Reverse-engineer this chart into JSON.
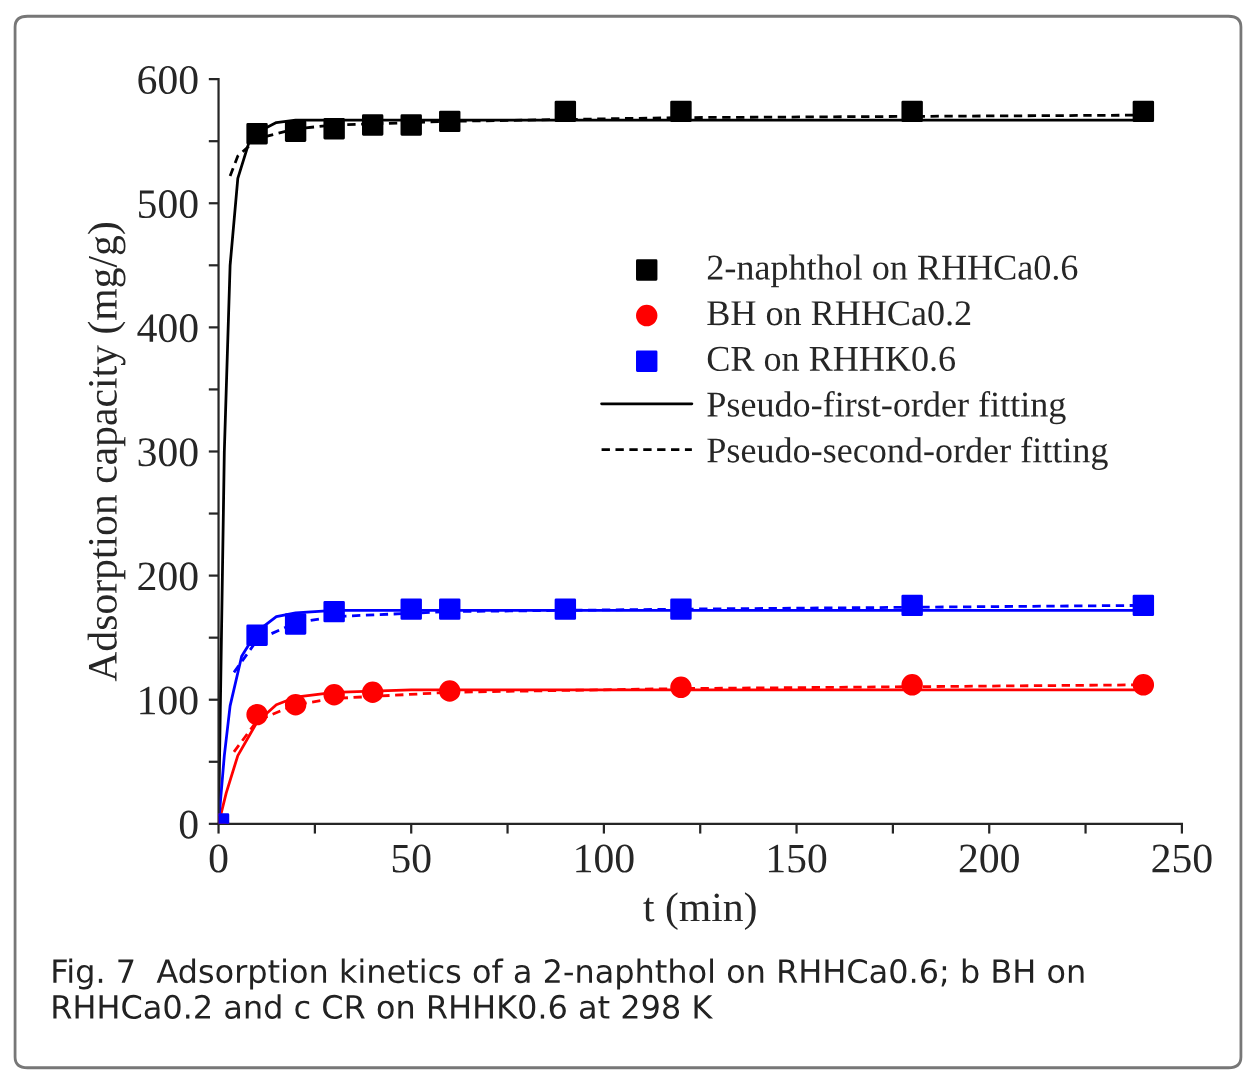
{
  "chart_data": {
    "type": "scatter",
    "xlabel": "t (min)",
    "ylabel": "Adsorption capacity (mg/g)",
    "xlim": [
      0,
      250
    ],
    "ylim": [
      0,
      600
    ],
    "xticks": [
      0,
      {
        "value": 25,
        "label": null
      },
      50,
      {
        "value": 75,
        "label": null
      },
      100,
      {
        "value": 125,
        "label": null
      },
      150,
      {
        "value": 175,
        "label": null
      },
      200,
      {
        "value": 225,
        "label": null
      },
      250
    ],
    "yticks": [
      0,
      {
        "value": 50,
        "label": null
      },
      100,
      {
        "value": 150,
        "label": null
      },
      200,
      {
        "value": 250,
        "label": null
      },
      300,
      {
        "value": 350,
        "label": null
      },
      400,
      {
        "value": 450,
        "label": null
      },
      500,
      {
        "value": 550,
        "label": null
      },
      600
    ],
    "grid": false,
    "legend": "right",
    "annotations": [
      "Fig. 7  Adsorption kinetics of a 2-naphthol on RHHCa0.6; b BH on RHHCa0.2 and c CR on RHHK0.6 at 298 K"
    ],
    "series": [
      {
        "name": "2-naphthol on RHHCa0.6",
        "marker": "square",
        "color": "#000000",
        "x": [
          10,
          20,
          30,
          40,
          50,
          60,
          90,
          120,
          180,
          240
        ],
        "values": [
          556,
          558,
          560,
          563,
          563,
          566,
          574,
          574,
          574,
          574
        ]
      },
      {
        "name": "BH on RHHCa0.2",
        "marker": "circle",
        "color": "#ff0000",
        "x": [
          0,
          10,
          20,
          30,
          40,
          60,
          120,
          180,
          240
        ],
        "values": [
          0,
          88,
          96,
          104,
          106,
          107,
          110,
          112,
          112
        ]
      },
      {
        "name": "CR on RHHK0.6",
        "marker": "square",
        "color": "#0000ff",
        "x": [
          0,
          10,
          20,
          30,
          50,
          60,
          90,
          120,
          180,
          240
        ],
        "values": [
          0,
          152,
          161,
          171,
          173,
          173,
          173,
          173,
          176,
          176
        ]
      },
      {
        "name": "Pseudo-first-order fitting",
        "type": "line",
        "line_style": "solid",
        "color": "#000000",
        "x": [
          0,
          1.5,
          3,
          5,
          8,
          10,
          15,
          20,
          30,
          60,
          240
        ],
        "values": [
          0,
          300,
          450,
          520,
          550,
          557,
          565,
          567,
          567,
          567,
          567
        ]
      },
      {
        "name": "Pseudo-second-order fitting",
        "type": "line",
        "line_style": "dashed",
        "color": "#000000",
        "x": [
          3,
          5,
          10,
          20,
          30,
          60,
          120,
          240
        ],
        "values": [
          522,
          538,
          552,
          560,
          563,
          566,
          569,
          571
        ]
      },
      {
        "type": "line",
        "line_style": "solid",
        "color": "#ff0000",
        "x": [
          0,
          2,
          5,
          10,
          15,
          20,
          30,
          50,
          240
        ],
        "values": [
          0,
          25,
          55,
          82,
          96,
          102,
          106,
          108,
          108
        ]
      },
      {
        "type": "line",
        "line_style": "dashed",
        "color": "#ff0000",
        "x": [
          4,
          10,
          20,
          30,
          60,
          120,
          240
        ],
        "values": [
          58,
          83,
          96,
          101,
          106,
          109,
          112
        ]
      },
      {
        "type": "line",
        "line_style": "solid",
        "color": "#0000ff",
        "x": [
          0,
          1.5,
          3,
          6,
          10,
          15,
          20,
          30,
          240
        ],
        "values": [
          0,
          55,
          95,
          135,
          155,
          167,
          170,
          172,
          172
        ]
      },
      {
        "type": "line",
        "line_style": "dashed",
        "color": "#0000ff",
        "x": [
          4,
          10,
          20,
          30,
          60,
          120,
          240
        ],
        "values": [
          122,
          148,
          162,
          167,
          171,
          173,
          176
        ]
      }
    ]
  }
}
